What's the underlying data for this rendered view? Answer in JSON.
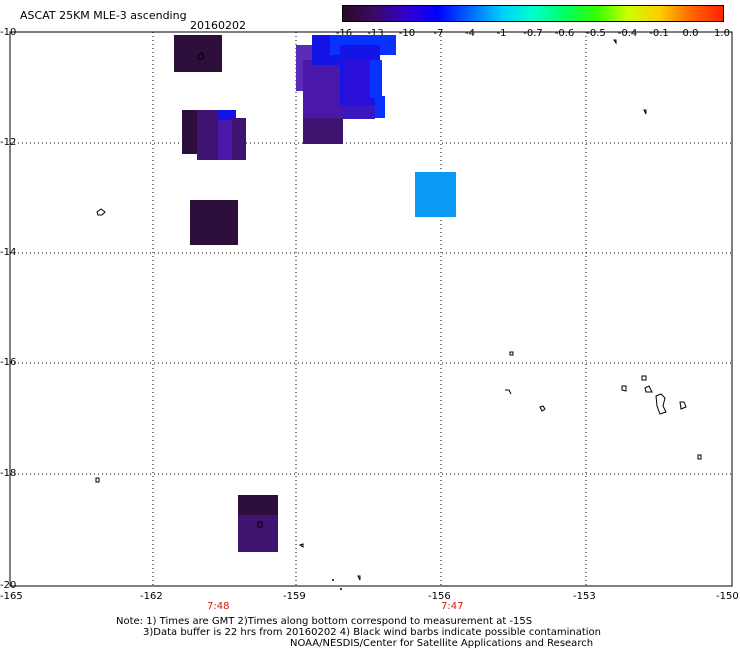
{
  "title": "ASCAT 25KM MLE-3 ascending",
  "date": "20160202",
  "colorbar": {
    "labels": [
      "-16",
      "-13",
      "-10",
      "-7",
      "-4",
      "-1",
      "-0.7",
      "-0.6",
      "-0.5",
      "-0.4",
      "-0.1",
      "0.0",
      "1.0"
    ],
    "colors": [
      "#2a0a28",
      "#3a0a66",
      "#3300cc",
      "#0000ff",
      "#0066ff",
      "#00ccff",
      "#00ffcc",
      "#00ff66",
      "#33ff00",
      "#ccff00",
      "#ffcc00",
      "#ff6600",
      "#ff2200"
    ]
  },
  "y_ticks": [
    "-10",
    "-12",
    "-14",
    "-16",
    "-18",
    "-20"
  ],
  "x_ticks": [
    "-165",
    "-162",
    "-159",
    "-156",
    "-153",
    "-150"
  ],
  "time_labels": [
    "7:48",
    "7:47"
  ],
  "pixel_colors": {
    "dark_purple": "#2e0e3a",
    "purple": "#3e1470",
    "indigo": "#4a18a8",
    "violet": "#5a2ab8",
    "blue": "#1414e6",
    "bright_blue": "#0a32ff",
    "sky_blue": "#0a9af5"
  },
  "note": {
    "line1": "Note: 1) Times are GMT 2)Times along bottom correspond to measurement at -15S",
    "line2": "3)Data buffer is 22 hrs from 20160202 4) Black wind barbs indicate possible contamination",
    "line3": "NOAA/NESDIS/Center for Satellite Applications and Research"
  }
}
